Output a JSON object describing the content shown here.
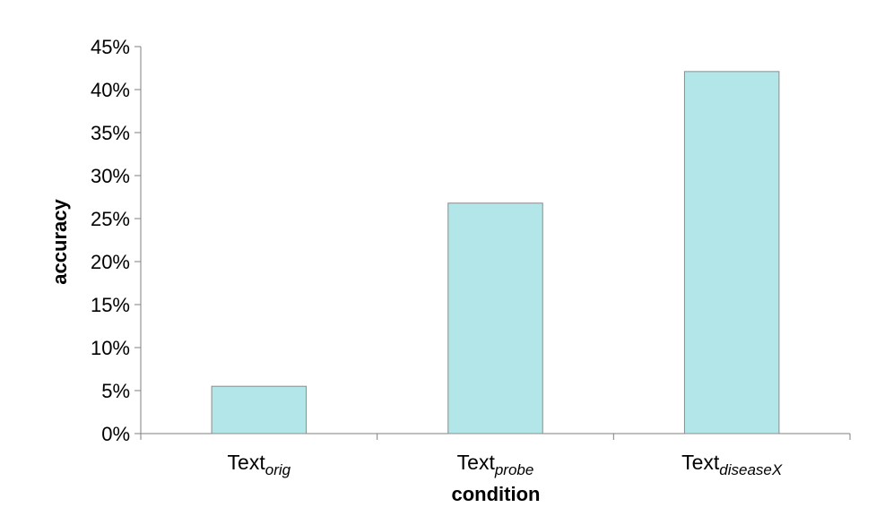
{
  "chart_data": {
    "type": "bar",
    "categories": [
      {
        "base": "Text",
        "sub": "orig"
      },
      {
        "base": "Text",
        "sub": "probe"
      },
      {
        "base": "Text",
        "sub": "diseaseX"
      }
    ],
    "values": [
      0.055,
      0.268,
      0.421
    ],
    "xlabel": "condition",
    "ylabel": "accuracy",
    "ylim": [
      0,
      0.45
    ],
    "yticks": [
      0,
      0.05,
      0.1,
      0.15,
      0.2,
      0.25,
      0.3,
      0.35,
      0.4,
      0.45
    ],
    "ytick_labels": [
      "0%",
      "5%",
      "10%",
      "15%",
      "20%",
      "25%",
      "30%",
      "35%",
      "40%",
      "45%"
    ],
    "bar_color": "#b3e6e8",
    "bar_edge_color": "#8c8c8c",
    "grid": false,
    "legend": "none"
  }
}
